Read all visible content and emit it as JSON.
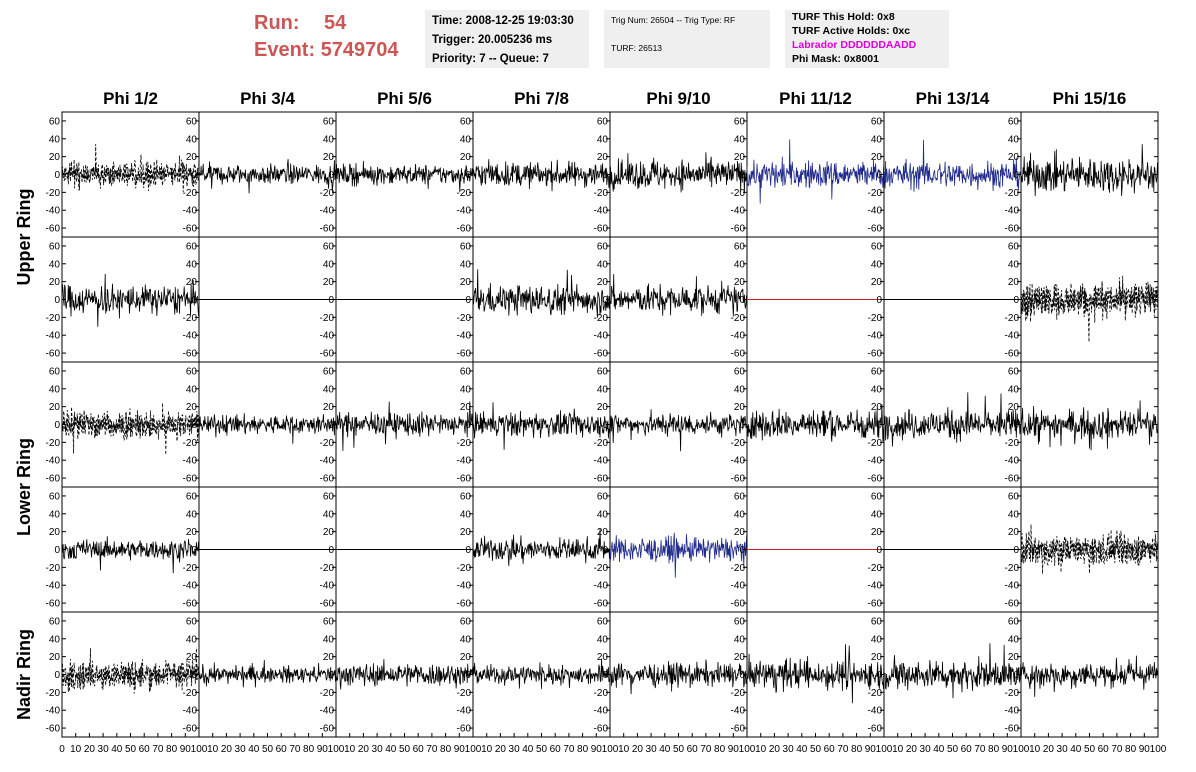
{
  "header": {
    "run_label": "Run:",
    "run_value": "54",
    "event_label": "Event:",
    "event_value": "5749704",
    "time_box": [
      "Time: 2008-12-25 19:03:30",
      "Trigger: 20.005236 ms",
      "Priority: 7 -- Queue: 7"
    ],
    "trig_box": [
      "Trig Num: 26504 -- Trig Type: RF",
      "",
      "TURF: 26513"
    ],
    "turf_box": [
      "TURF This Hold: 0x8",
      "TURF Active Holds: 0xc",
      "Labrador DDDDDDAADD",
      "Phi Mask: 0x8001"
    ]
  },
  "colors": {
    "run_text": "#cc5555",
    "labrador": "#e000e0",
    "blue_trace": "#1f2a8c",
    "red_trace": "#cc2222",
    "black_trace": "#000000"
  },
  "chart_data": {
    "type": "line",
    "columns": [
      "Phi 1/2",
      "Phi 3/4",
      "Phi 5/6",
      "Phi 7/8",
      "Phi 9/10",
      "Phi 11/12",
      "Phi 13/14",
      "Phi 15/16"
    ],
    "ring_labels": [
      "Upper Ring",
      "Lower Ring",
      "Nadir Ring"
    ],
    "xlim": [
      0,
      100
    ],
    "ylim": [
      -70,
      70
    ],
    "yticks": [
      -60,
      -40,
      -20,
      0,
      20,
      40,
      60
    ],
    "xticks": [
      0,
      10,
      20,
      30,
      40,
      50,
      60,
      70,
      80,
      90,
      100
    ],
    "grid": false,
    "note_traces": "each cell is a waveform trace; styles: solid, dashed (two overlaid), flat, blue, red-flat",
    "rows": [
      [
        {
          "style": "dashed",
          "amp": 15
        },
        {
          "style": "solid",
          "amp": 12
        },
        {
          "style": "solid",
          "amp": 12
        },
        {
          "style": "solid",
          "amp": 15
        },
        {
          "style": "solid",
          "amp": 18
        },
        {
          "style": "blue",
          "amp": 17
        },
        {
          "style": "blue",
          "amp": 17
        },
        {
          "style": "solid",
          "amp": 22
        }
      ],
      [
        {
          "style": "solid",
          "amp": 18
        },
        {
          "style": "flat",
          "amp": 0
        },
        {
          "style": "flat",
          "amp": 0
        },
        {
          "style": "solid",
          "amp": 18
        },
        {
          "style": "solid",
          "amp": 17
        },
        {
          "style": "red",
          "amp": 0
        },
        {
          "style": "flat",
          "amp": 0
        },
        {
          "style": "dashed",
          "amp": 20
        }
      ],
      [
        {
          "style": "dashed",
          "amp": 17
        },
        {
          "style": "solid",
          "amp": 12
        },
        {
          "style": "solid",
          "amp": 14
        },
        {
          "style": "solid",
          "amp": 15
        },
        {
          "style": "solid",
          "amp": 14
        },
        {
          "style": "solid",
          "amp": 18
        },
        {
          "style": "solid",
          "amp": 18
        },
        {
          "style": "solid",
          "amp": 18
        }
      ],
      [
        {
          "style": "solid",
          "amp": 12
        },
        {
          "style": "flat",
          "amp": 0
        },
        {
          "style": "flat",
          "amp": 0
        },
        {
          "style": "solid",
          "amp": 14
        },
        {
          "style": "blue",
          "amp": 15
        },
        {
          "style": "red",
          "amp": 0
        },
        {
          "style": "flat",
          "amp": 0
        },
        {
          "style": "dashed",
          "amp": 18
        }
      ],
      [
        {
          "style": "dashed",
          "amp": 17
        },
        {
          "style": "solid",
          "amp": 10
        },
        {
          "style": "solid",
          "amp": 14
        },
        {
          "style": "solid",
          "amp": 12
        },
        {
          "style": "solid",
          "amp": 14
        },
        {
          "style": "solid",
          "amp": 18
        },
        {
          "style": "solid",
          "amp": 18
        },
        {
          "style": "solid",
          "amp": 15
        }
      ]
    ]
  }
}
